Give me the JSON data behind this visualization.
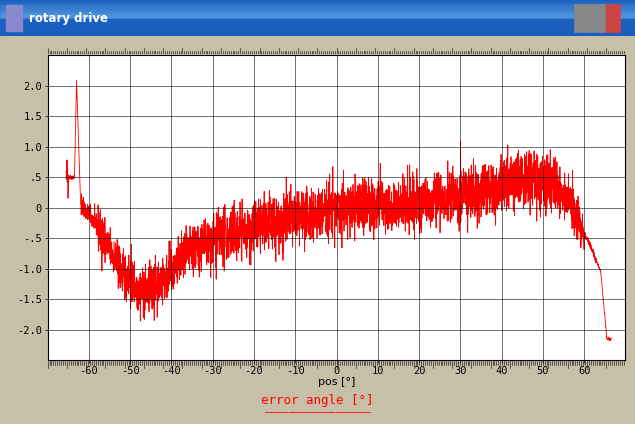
{
  "title": "rotary drive",
  "xlabel": "pos [°]",
  "ylabel": "error angle [°]",
  "xlim": [
    -70,
    70
  ],
  "ylim": [
    -2.5,
    2.5
  ],
  "xticks": [
    -60,
    -50,
    -40,
    -30,
    -20,
    -10,
    0,
    10,
    20,
    30,
    40,
    50,
    60
  ],
  "ytick_vals": [
    -2.0,
    -1.5,
    -1.0,
    -0.5,
    0.0,
    0.5,
    1.0,
    1.5,
    2.0
  ],
  "ytick_labels": [
    "-2.0",
    "-1.5",
    "-1.0",
    "-.5",
    "0",
    ".5",
    "1.0",
    "1.5",
    "2.0"
  ],
  "line_color": "#ff0000",
  "bg_color": "#ffffff",
  "outer_bg": "#c8bfa8",
  "grid_color": "#000000",
  "title_bar_color1": "#0050c8",
  "title_bar_color2": "#4090e0",
  "seed": 42,
  "n_points": 4000
}
